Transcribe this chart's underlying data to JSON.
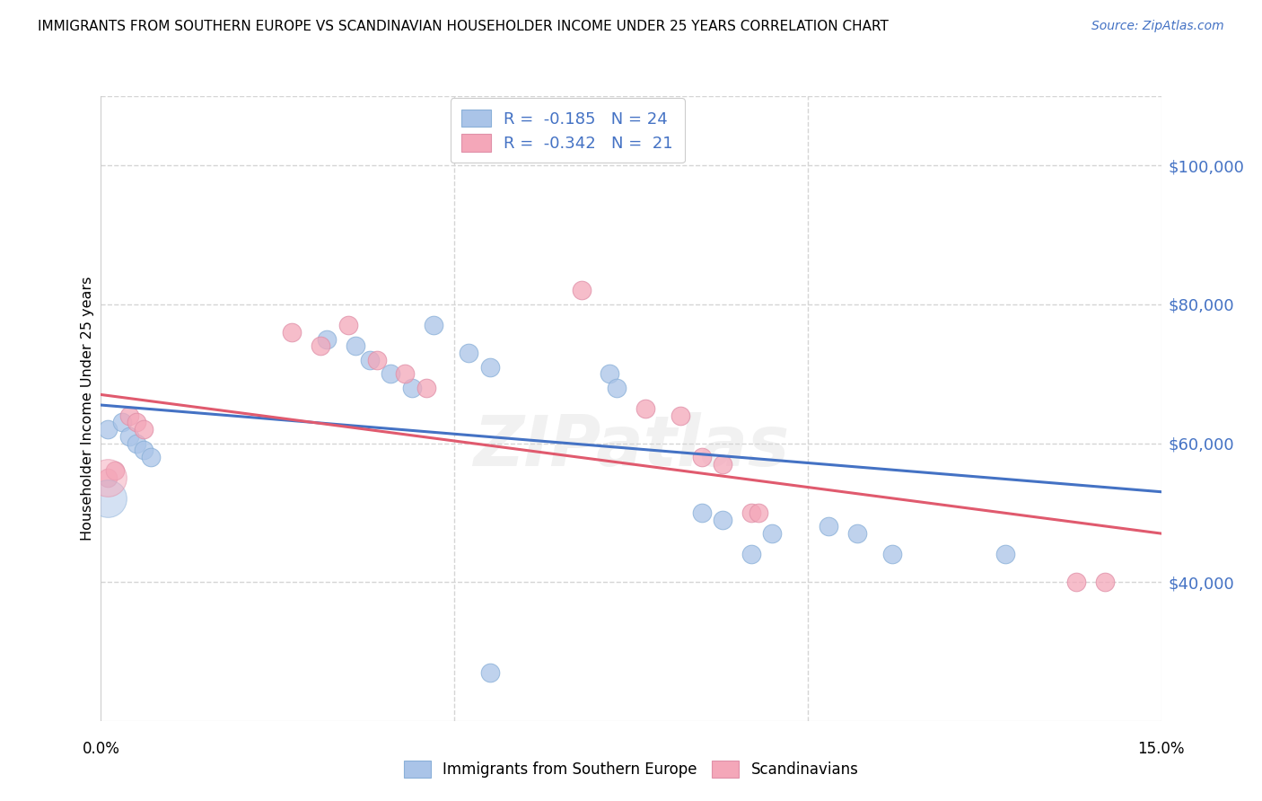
{
  "title": "IMMIGRANTS FROM SOUTHERN EUROPE VS SCANDINAVIAN HOUSEHOLDER INCOME UNDER 25 YEARS CORRELATION CHART",
  "source": "Source: ZipAtlas.com",
  "ylabel": "Householder Income Under 25 years",
  "legend_entries": [
    {
      "label": "R =  -0.185   N = 24",
      "color": "#aac4e8"
    },
    {
      "label": "R =  -0.342   N =  21",
      "color": "#f4a7b9"
    }
  ],
  "legend_label1": "Immigrants from Southern Europe",
  "legend_label2": "Scandinavians",
  "ytick_values": [
    40000,
    60000,
    80000,
    100000
  ],
  "ytick_color": "#4472c4",
  "xlim": [
    0.0,
    0.15
  ],
  "ylim": [
    20000,
    110000
  ],
  "blue_x": [
    0.001,
    0.003,
    0.004,
    0.005,
    0.006,
    0.007,
    0.032,
    0.036,
    0.038,
    0.041,
    0.044,
    0.047,
    0.052,
    0.055,
    0.072,
    0.073,
    0.085,
    0.088,
    0.092,
    0.095,
    0.103,
    0.107,
    0.112,
    0.128
  ],
  "blue_y": [
    62000,
    63000,
    61000,
    60000,
    59000,
    58000,
    75000,
    74000,
    72000,
    70000,
    68000,
    77000,
    73000,
    71000,
    70000,
    68000,
    50000,
    49000,
    44000,
    47000,
    48000,
    47000,
    44000,
    44000
  ],
  "pink_x": [
    0.001,
    0.002,
    0.004,
    0.005,
    0.006,
    0.027,
    0.031,
    0.035,
    0.039,
    0.043,
    0.046,
    0.068,
    0.077,
    0.082,
    0.085,
    0.088,
    0.092,
    0.093,
    0.138,
    0.142
  ],
  "pink_y": [
    55000,
    56000,
    64000,
    63000,
    62000,
    76000,
    74000,
    77000,
    72000,
    70000,
    68000,
    82000,
    65000,
    64000,
    58000,
    57000,
    50000,
    50000,
    40000,
    40000
  ],
  "blue_large_x": [
    0.001
  ],
  "blue_large_y": [
    52000
  ],
  "pink_large_x": [
    0.001
  ],
  "pink_large_y": [
    55000
  ],
  "blue_outlier_x": [
    0.055
  ],
  "blue_outlier_y": [
    27000
  ],
  "blue_line_x0": 0.0,
  "blue_line_y0": 65500,
  "blue_line_x1": 0.15,
  "blue_line_y1": 53000,
  "pink_line_x0": 0.0,
  "pink_line_y0": 67000,
  "pink_line_x1": 0.15,
  "pink_line_y1": 47000,
  "blue_color": "#aac4e8",
  "pink_color": "#f4a7b9",
  "blue_line_color": "#4472c4",
  "pink_line_color": "#e05a6e",
  "watermark": "ZIPatlas",
  "background_color": "#ffffff",
  "grid_color": "#d5d5d5"
}
